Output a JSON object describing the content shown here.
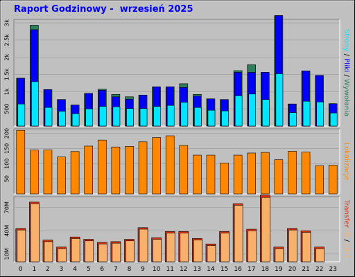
{
  "title": "Raport Godzinowy -  wrzesień 2025",
  "colors": {
    "background": "#c0c0c0",
    "plot_bg": "#c0c0c0",
    "wyswietlenia": "#2e7d5b",
    "pliki": "#0000ff",
    "strony": "#00e5ff",
    "lokalizacje": "#ff8800",
    "transfer_in": "#e03010",
    "transfer_out": "#f8b06a",
    "title": "#0000ff"
  },
  "chart_data": [
    {
      "type": "bar",
      "panel": "top",
      "categories": [
        "0",
        "1",
        "2",
        "3",
        "4",
        "5",
        "6",
        "7",
        "8",
        "9",
        "10",
        "11",
        "12",
        "13",
        "14",
        "15",
        "16",
        "17",
        "18",
        "19",
        "20",
        "21",
        "22",
        "23"
      ],
      "yticks": [
        "500",
        "1k",
        "1.5k",
        "2k",
        "2.5k",
        "3k"
      ],
      "ylim": [
        0,
        3100
      ],
      "side_label": {
        "parts": [
          "Strony",
          " / ",
          "Pliki",
          " / ",
          "Wywołania"
        ]
      },
      "series": [
        {
          "name": "Wywołania",
          "values": [
            1390,
            2930,
            1060,
            770,
            610,
            950,
            1070,
            920,
            850,
            900,
            1140,
            1140,
            1230,
            920,
            790,
            770,
            1610,
            1780,
            1560,
            3210,
            640,
            1600,
            1470,
            650
          ]
        },
        {
          "name": "Pliki",
          "values": [
            1390,
            2800,
            1060,
            770,
            610,
            950,
            1040,
            850,
            780,
            900,
            1140,
            1140,
            1120,
            870,
            790,
            770,
            1560,
            1560,
            1560,
            3210,
            640,
            1600,
            1470,
            650
          ]
        },
        {
          "name": "Strony",
          "values": [
            640,
            1290,
            540,
            430,
            360,
            500,
            570,
            560,
            510,
            510,
            570,
            600,
            690,
            540,
            460,
            440,
            880,
            930,
            770,
            1520,
            390,
            720,
            700,
            380
          ]
        }
      ]
    },
    {
      "type": "bar",
      "panel": "middle",
      "categories": [
        "0",
        "1",
        "2",
        "3",
        "4",
        "5",
        "6",
        "7",
        "8",
        "9",
        "10",
        "11",
        "12",
        "13",
        "14",
        "15",
        "16",
        "17",
        "18",
        "19",
        "20",
        "21",
        "22",
        "23"
      ],
      "yticks": [
        "50",
        "100",
        "150",
        "200"
      ],
      "ylim": [
        0,
        215
      ],
      "side_label": {
        "parts": [
          "Lokalizacje"
        ]
      },
      "series": [
        {
          "name": "Lokalizacje",
          "values": [
            210,
            145,
            145,
            122,
            140,
            158,
            178,
            155,
            157,
            172,
            186,
            192,
            160,
            128,
            128,
            102,
            128,
            135,
            137,
            113,
            141,
            138,
            93,
            95
          ]
        }
      ]
    },
    {
      "type": "bar",
      "panel": "bottom",
      "categories": [
        "0",
        "1",
        "2",
        "3",
        "4",
        "5",
        "6",
        "7",
        "8",
        "9",
        "10",
        "11",
        "12",
        "13",
        "14",
        "15",
        "16",
        "17",
        "18",
        "19",
        "20",
        "21",
        "22",
        "23"
      ],
      "yticks": [
        "10M",
        "40M",
        "70M"
      ],
      "ylim": [
        0,
        84
      ],
      "side_label": {
        "parts": [
          "Transfer",
          " IN",
          " / ",
          "OUT"
        ]
      },
      "series": [
        {
          "name": "IN",
          "values": [
            43,
            77,
            28,
            19,
            32,
            29,
            25,
            26,
            29,
            44,
            31,
            39,
            39,
            30,
            23,
            39,
            75,
            42,
            86,
            19,
            43,
            40,
            19,
            0
          ]
        },
        {
          "name": "OUT",
          "values": [
            41,
            75,
            26,
            17,
            30,
            27,
            23,
            24,
            27,
            42,
            29,
            37,
            37,
            28,
            21,
            37,
            73,
            40,
            83,
            17,
            41,
            38,
            17,
            0
          ]
        }
      ]
    }
  ]
}
